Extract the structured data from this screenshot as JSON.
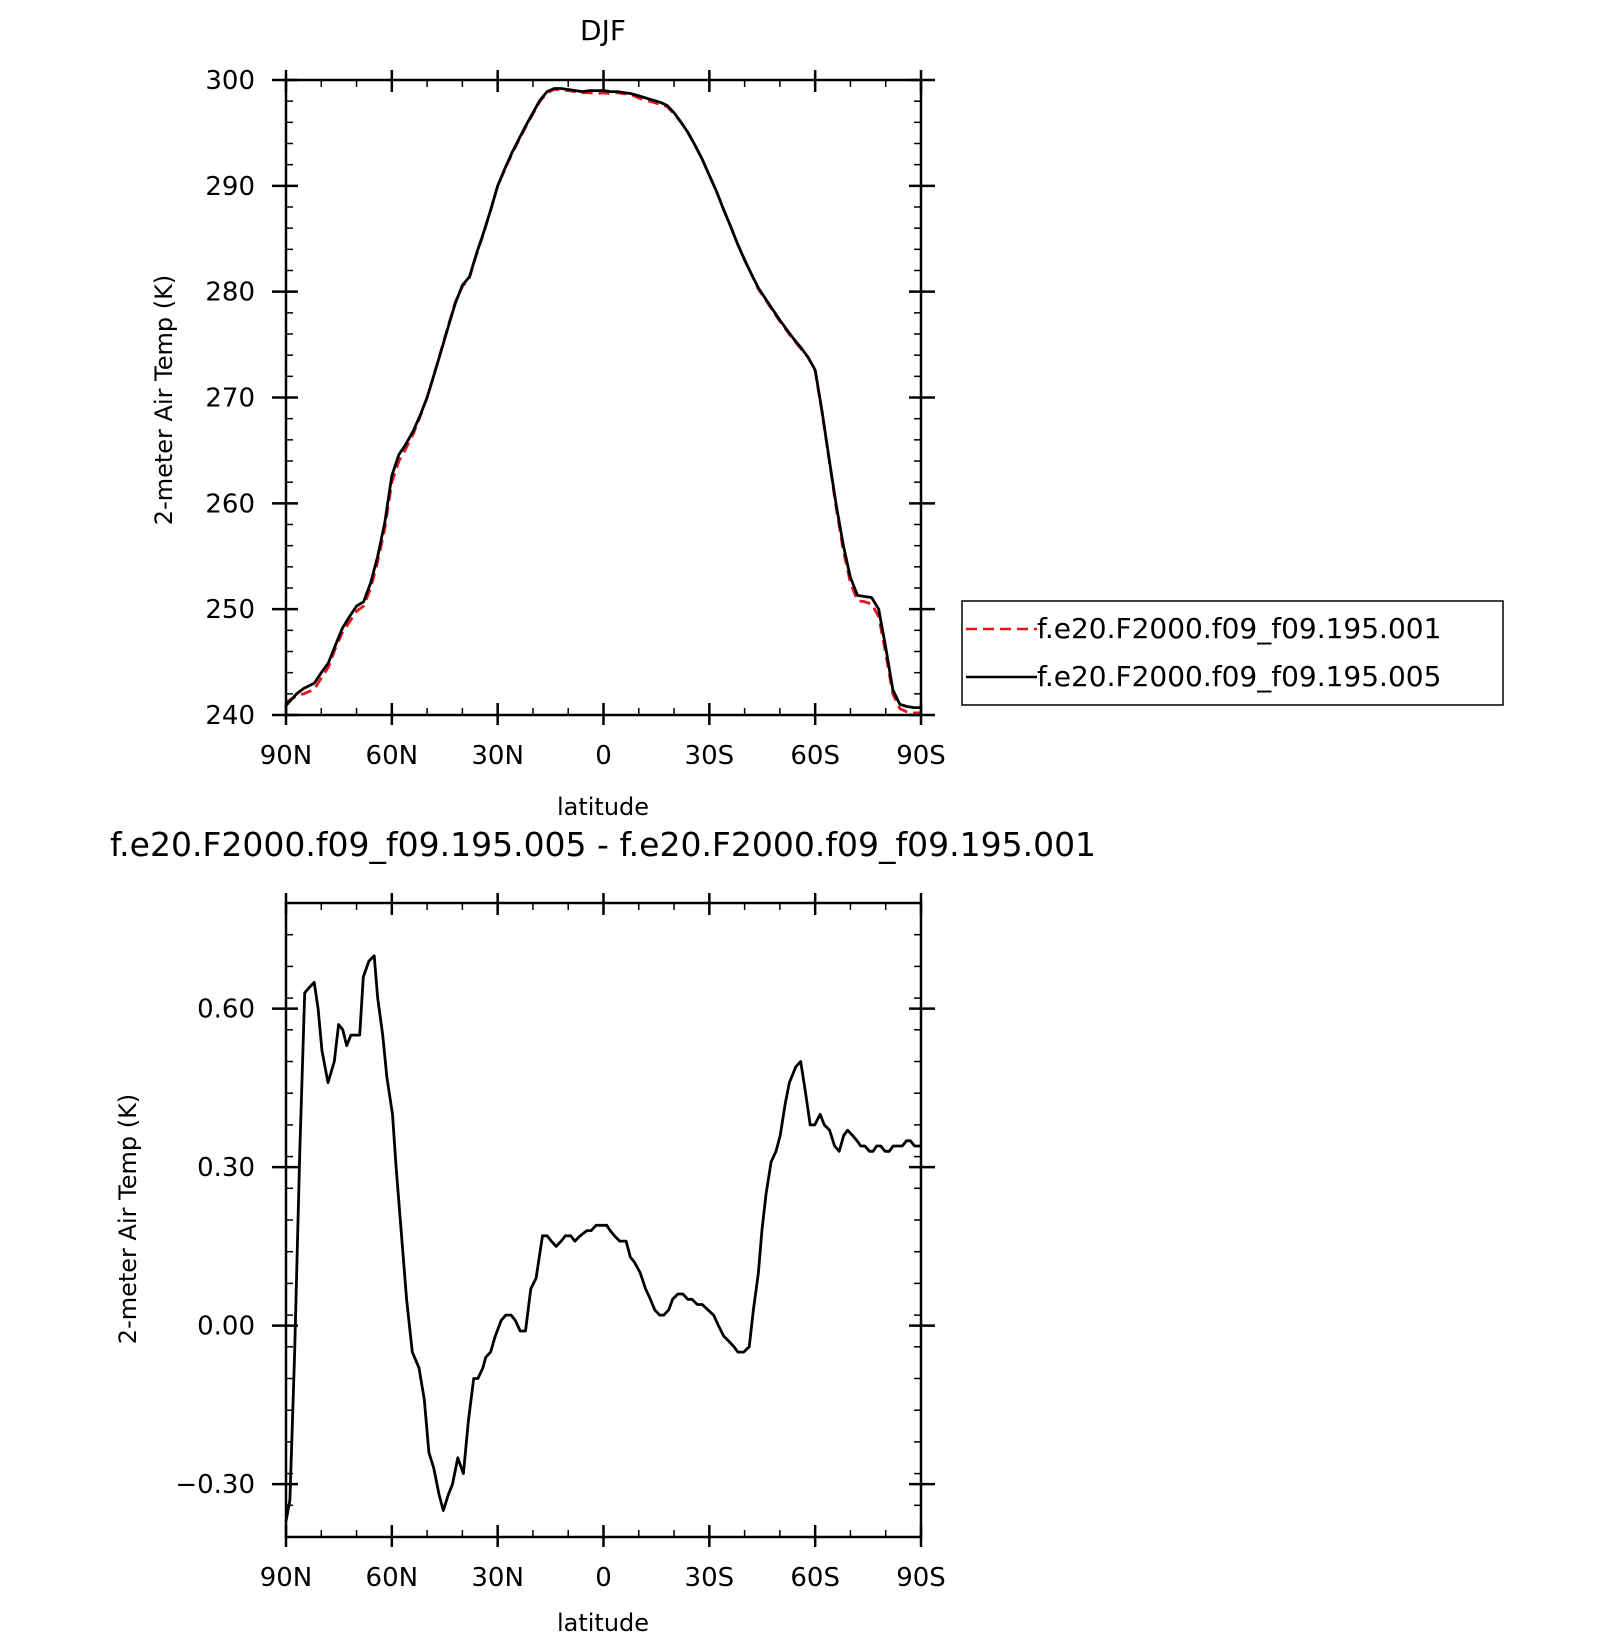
{
  "chart_data": [
    {
      "type": "line",
      "title": "DJF",
      "xlabel": "latitude",
      "ylabel": "2-meter Air Temp (K)",
      "x_ticks": [
        90,
        60,
        30,
        0,
        -30,
        -60,
        -90
      ],
      "x_tick_labels": [
        "90N",
        "60N",
        "30N",
        "0",
        "30S",
        "60S",
        "90S"
      ],
      "y_ticks": [
        240,
        250,
        260,
        270,
        280,
        290,
        300
      ],
      "y_tick_labels": [
        "240",
        "250",
        "260",
        "270",
        "280",
        "290",
        "300"
      ],
      "xlim": [
        90,
        -90
      ],
      "ylim": [
        240,
        300
      ],
      "grid": false,
      "legend_position": "right",
      "series": [
        {
          "name": "f.e20.F2000.f09_f09.195.001",
          "color": "#e8141b",
          "dash": "dashed",
          "x": [
            90,
            87,
            85,
            82,
            80,
            78,
            76,
            74,
            72,
            70,
            68,
            66,
            64,
            62,
            60,
            58,
            56,
            54,
            52,
            50,
            48,
            46,
            44,
            42,
            40,
            38,
            36,
            34,
            32,
            30,
            28,
            26,
            24,
            22,
            20,
            18,
            16,
            14,
            12,
            10,
            8,
            6,
            4,
            2,
            0,
            -2,
            -4,
            -6,
            -8,
            -10,
            -12,
            -14,
            -16,
            -18,
            -20,
            -22,
            -24,
            -26,
            -28,
            -30,
            -32,
            -34,
            -36,
            -38,
            -40,
            -42,
            -44,
            -46,
            -48,
            -50,
            -52,
            -54,
            -56,
            -58,
            -60,
            -62,
            -64,
            -66,
            -68,
            -70,
            -72,
            -74,
            -76,
            -78,
            -80,
            -82,
            -84,
            -86,
            -88,
            -90
          ],
          "y": [
            241.2,
            241.8,
            242.0,
            242.4,
            243.5,
            244.5,
            246.3,
            247.8,
            248.8,
            249.8,
            250.3,
            252.0,
            254.5,
            257.6,
            262.0,
            264.0,
            265.2,
            266.5,
            268.2,
            270.0,
            272.2,
            274.5,
            276.8,
            279.0,
            280.5,
            281.3,
            283.5,
            285.5,
            287.7,
            290.0,
            291.5,
            293.0,
            294.3,
            295.6,
            296.8,
            298.0,
            298.8,
            299.1,
            299.1,
            299.0,
            298.9,
            298.8,
            298.8,
            298.7,
            298.8,
            298.7,
            298.8,
            298.7,
            298.6,
            298.3,
            298.1,
            297.9,
            297.7,
            297.5,
            296.8,
            296.0,
            295.0,
            293.8,
            292.5,
            291.0,
            289.5,
            287.8,
            286.2,
            284.5,
            283.0,
            281.6,
            280.2,
            279.2,
            278.2,
            277.2,
            276.3,
            275.4,
            274.6,
            273.8,
            272.5,
            268.5,
            264.0,
            259.5,
            255.5,
            252.5,
            250.8,
            250.7,
            250.5,
            249.3,
            245.8,
            242.0,
            240.6,
            240.3,
            240.2,
            240.2
          ]
        },
        {
          "name": "f.e20.F2000.f09_f09.195.005",
          "color": "#000000",
          "dash": "solid",
          "x": [
            90,
            87,
            85,
            82,
            80,
            78,
            76,
            74,
            72,
            70,
            68,
            66,
            64,
            62,
            60,
            58,
            56,
            54,
            52,
            50,
            48,
            46,
            44,
            42,
            40,
            38,
            36,
            34,
            32,
            30,
            28,
            26,
            24,
            22,
            20,
            18,
            16,
            14,
            12,
            10,
            8,
            6,
            4,
            2,
            0,
            -2,
            -4,
            -6,
            -8,
            -10,
            -12,
            -14,
            -16,
            -18,
            -20,
            -22,
            -24,
            -26,
            -28,
            -30,
            -32,
            -34,
            -36,
            -38,
            -40,
            -42,
            -44,
            -46,
            -48,
            -50,
            -52,
            -54,
            -56,
            -58,
            -60,
            -62,
            -64,
            -66,
            -68,
            -70,
            -72,
            -74,
            -76,
            -78,
            -80,
            -82,
            -84,
            -86,
            -88,
            -90
          ],
          "y": [
            240.9,
            242.0,
            242.5,
            243.0,
            244.0,
            244.9,
            246.6,
            248.2,
            249.3,
            250.3,
            250.7,
            252.5,
            255.0,
            258.2,
            262.6,
            264.6,
            265.6,
            266.8,
            268.3,
            270.0,
            272.2,
            274.4,
            276.7,
            278.9,
            280.6,
            281.4,
            283.6,
            285.6,
            287.7,
            290.0,
            291.6,
            293.1,
            294.4,
            295.7,
            296.9,
            298.1,
            298.9,
            299.2,
            299.2,
            299.1,
            299.0,
            298.9,
            299.0,
            299.0,
            299.0,
            298.9,
            298.9,
            298.8,
            298.7,
            298.5,
            298.3,
            298.1,
            297.9,
            297.6,
            296.9,
            296.0,
            295.0,
            293.8,
            292.5,
            291.0,
            289.5,
            287.8,
            286.2,
            284.5,
            283.0,
            281.6,
            280.3,
            279.3,
            278.3,
            277.3,
            276.4,
            275.5,
            274.7,
            273.8,
            272.6,
            268.6,
            264.1,
            259.8,
            256.0,
            253.0,
            251.3,
            251.2,
            251.1,
            250.0,
            246.4,
            242.4,
            241.0,
            240.8,
            240.7,
            240.7
          ]
        }
      ]
    },
    {
      "type": "line",
      "title": "f.e20.F2000.f09_f09.195.005 - f.e20.F2000.f09_f09.195.001",
      "xlabel": "latitude",
      "ylabel": "2-meter Air Temp (K)",
      "x_ticks": [
        90,
        60,
        30,
        0,
        -30,
        -60,
        -90
      ],
      "x_tick_labels": [
        "90N",
        "60N",
        "30N",
        "0",
        "30S",
        "60S",
        "90S"
      ],
      "y_ticks": [
        -0.3,
        0.0,
        0.3,
        0.6
      ],
      "y_tick_labels": [
        "−0.30",
        "0.00",
        "0.30",
        "0.60"
      ],
      "xlim": [
        90,
        -90
      ],
      "ylim": [
        -0.4,
        0.8
      ],
      "grid": false,
      "series": [
        {
          "color": "#000000",
          "dash": "solid",
          "x": [
            90,
            88.9,
            87.6,
            86.1,
            84.7,
            83.4,
            82.0,
            80.9,
            79.8,
            78.1,
            76.3,
            75.1,
            73.9,
            72.8,
            71.6,
            70.2,
            69.1,
            68.1,
            66.5,
            65.0,
            64.0,
            62.6,
            61.4,
            59.8,
            58.8,
            57.6,
            55.8,
            54.2,
            52.3,
            50.8,
            49.5,
            48.1,
            46.6,
            45.4,
            44.0,
            42.8,
            41.3,
            39.7,
            38.3,
            36.8,
            35.6,
            34.2,
            33.4,
            32.0,
            30.7,
            29.0,
            27.7,
            26.2,
            25.0,
            23.6,
            22.1,
            20.6,
            19.1,
            17.3,
            16.0,
            14.8,
            13.4,
            12.0,
            10.8,
            9.3,
            8.1,
            6.6,
            4.7,
            3.5,
            2.1,
            0.5,
            -0.9,
            -1.9,
            -3.1,
            -4.6,
            -6.4,
            -7.6,
            -8.8,
            -10.4,
            -11.9,
            -13.3,
            -14.5,
            -15.9,
            -17.1,
            -18.5,
            -19.6,
            -21.1,
            -22.5,
            -23.9,
            -25.1,
            -26.6,
            -28.0,
            -29.6,
            -31.2,
            -32.6,
            -34.1,
            -35.6,
            -37.0,
            -38.1,
            -39.7,
            -41.3,
            -42.5,
            -43.9,
            -44.9,
            -46.1,
            -47.5,
            -48.9,
            -50.1,
            -51.5,
            -52.7,
            -54.5,
            -55.9,
            -57.3,
            -58.6,
            -59.9,
            -61.4,
            -62.6,
            -64.1,
            -65.5,
            -66.8,
            -68.1,
            -69.2,
            -70.6,
            -71.9,
            -72.9,
            -74.1,
            -75.4,
            -76.4,
            -77.4,
            -78.6,
            -79.8,
            -81.0,
            -82.1,
            -83.5,
            -84.7,
            -85.9,
            -87.0,
            -88.2,
            -89.3,
            -90
          ],
          "y": [
            -0.37,
            -0.33,
            -0.06,
            0.33,
            0.63,
            0.64,
            0.65,
            0.6,
            0.52,
            0.46,
            0.5,
            0.57,
            0.56,
            0.53,
            0.55,
            0.55,
            0.55,
            0.66,
            0.69,
            0.7,
            0.62,
            0.55,
            0.47,
            0.4,
            0.3,
            0.2,
            0.05,
            -0.05,
            -0.08,
            -0.14,
            -0.24,
            -0.27,
            -0.32,
            -0.35,
            -0.32,
            -0.3,
            -0.25,
            -0.28,
            -0.18,
            -0.1,
            -0.1,
            -0.08,
            -0.06,
            -0.05,
            -0.02,
            0.01,
            0.02,
            0.02,
            0.01,
            -0.01,
            -0.01,
            0.07,
            0.09,
            0.17,
            0.17,
            0.16,
            0.15,
            0.16,
            0.17,
            0.17,
            0.16,
            0.17,
            0.18,
            0.18,
            0.19,
            0.19,
            0.19,
            0.18,
            0.17,
            0.16,
            0.16,
            0.13,
            0.12,
            0.1,
            0.07,
            0.05,
            0.03,
            0.02,
            0.02,
            0.03,
            0.05,
            0.06,
            0.06,
            0.05,
            0.05,
            0.04,
            0.04,
            0.03,
            0.02,
            0.0,
            -0.02,
            -0.03,
            -0.04,
            -0.05,
            -0.05,
            -0.04,
            0.03,
            0.1,
            0.18,
            0.25,
            0.31,
            0.33,
            0.36,
            0.42,
            0.46,
            0.49,
            0.5,
            0.44,
            0.38,
            0.38,
            0.4,
            0.38,
            0.37,
            0.34,
            0.33,
            0.36,
            0.37,
            0.36,
            0.35,
            0.34,
            0.34,
            0.33,
            0.33,
            0.34,
            0.34,
            0.33,
            0.33,
            0.34,
            0.34,
            0.34,
            0.35,
            0.35,
            0.34,
            0.34,
            0.34
          ]
        }
      ]
    }
  ]
}
